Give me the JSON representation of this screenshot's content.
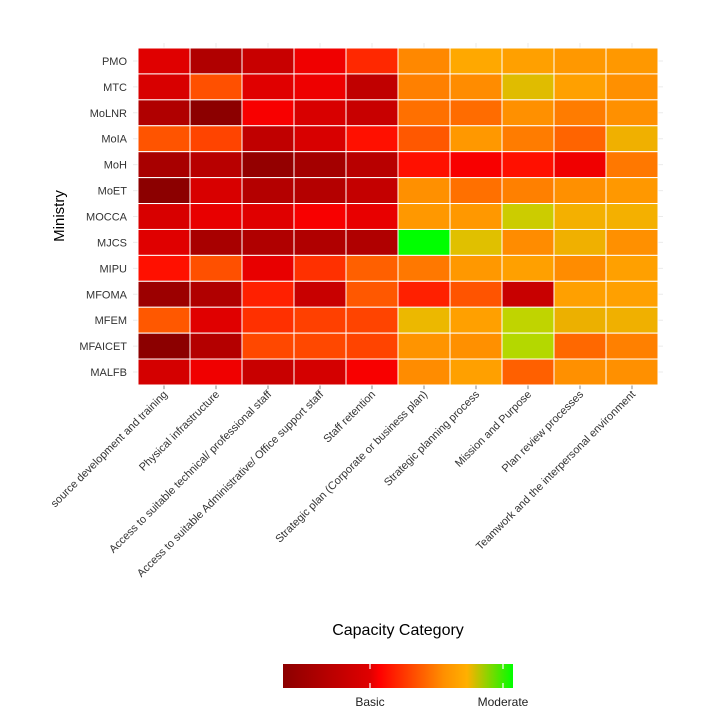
{
  "chart_data": {
    "type": "heatmap",
    "xlabel": "Capacity Category",
    "ylabel": "Ministry",
    "x_categories": [
      "source development and training",
      "Physical infrastructure",
      "Access to suitable technical/ professional staff",
      "Access to suitable Administrative/ Office support staff",
      "Staff retention",
      "Strategic plan (Corporate or business plan)",
      "Strategic planning process",
      "Mission and Purpose",
      "Plan review processes",
      "Teamwork and the interpersonal environment"
    ],
    "y_categories": [
      "PMO",
      "MTC",
      "MoLNR",
      "MoIA",
      "MoH",
      "MoET",
      "MOCCA",
      "MJCS",
      "MIPU",
      "MFOMA",
      "MFEM",
      "MFAICET",
      "MALFB"
    ],
    "cell_colors": [
      [
        "#e00000",
        "#b00000",
        "#c80000",
        "#f00000",
        "#ff2800",
        "#ff8800",
        "#ffa800",
        "#ffa000",
        "#ff9800",
        "#ff9800"
      ],
      [
        "#d80000",
        "#ff5000",
        "#e00000",
        "#ee0000",
        "#c00000",
        "#ff8000",
        "#ff8c00",
        "#e0bc00",
        "#ffa000",
        "#ff9000"
      ],
      [
        "#b00000",
        "#8c0000",
        "#f80000",
        "#d80000",
        "#c80000",
        "#ff7000",
        "#ff6c00",
        "#ff9000",
        "#ff7c00",
        "#ff9000"
      ],
      [
        "#ff5400",
        "#ff4400",
        "#c00000",
        "#d80000",
        "#ff1000",
        "#ff5800",
        "#ff9800",
        "#ff7c00",
        "#ff6400",
        "#f0b000"
      ],
      [
        "#a80000",
        "#b80000",
        "#940000",
        "#a40000",
        "#b80000",
        "#ff1000",
        "#f80000",
        "#ff1000",
        "#f00000",
        "#ff7800"
      ],
      [
        "#8c0000",
        "#d80000",
        "#b40000",
        "#b40000",
        "#c40000",
        "#ff9000",
        "#ff7000",
        "#ff8000",
        "#ff9000",
        "#ff9800"
      ],
      [
        "#d80000",
        "#e80000",
        "#e00000",
        "#f80000",
        "#e80000",
        "#ff9800",
        "#ff9800",
        "#cccc00",
        "#f4b000",
        "#f4b000"
      ],
      [
        "#e00000",
        "#a80000",
        "#b00000",
        "#b00000",
        "#b00000",
        "#00ff00",
        "#e0c000",
        "#ff8c00",
        "#f0b000",
        "#ff9000"
      ],
      [
        "#ff1000",
        "#ff5000",
        "#e80000",
        "#ff3000",
        "#ff6000",
        "#ff7800",
        "#ff9800",
        "#ffa000",
        "#ff8c00",
        "#ffa000"
      ],
      [
        "#9c0000",
        "#b00000",
        "#ff2000",
        "#c80000",
        "#ff5800",
        "#ff2000",
        "#ff5400",
        "#c80000",
        "#ffa000",
        "#ffa000"
      ],
      [
        "#ff5800",
        "#e00000",
        "#ff3000",
        "#ff4000",
        "#ff4400",
        "#ecb800",
        "#ffa000",
        "#c0d400",
        "#ecb000",
        "#f0b000"
      ],
      [
        "#8c0000",
        "#b40000",
        "#ff4800",
        "#ff4800",
        "#ff4400",
        "#ff9400",
        "#ff9000",
        "#b4d800",
        "#ff6800",
        "#ff8000"
      ],
      [
        "#d40000",
        "#f00000",
        "#c80000",
        "#d40000",
        "#f80000",
        "#ff8c00",
        "#ffa000",
        "#ff6000",
        "#ff9000",
        "#ff9000"
      ]
    ],
    "legend": {
      "placement": "bottom",
      "labels": [
        "Basic",
        "Moderate"
      ],
      "gradient": [
        "#8c0000",
        "#e00000",
        "#ff0000",
        "#ff9000",
        "#ffb000",
        "#00ff00"
      ]
    },
    "grid": true
  }
}
